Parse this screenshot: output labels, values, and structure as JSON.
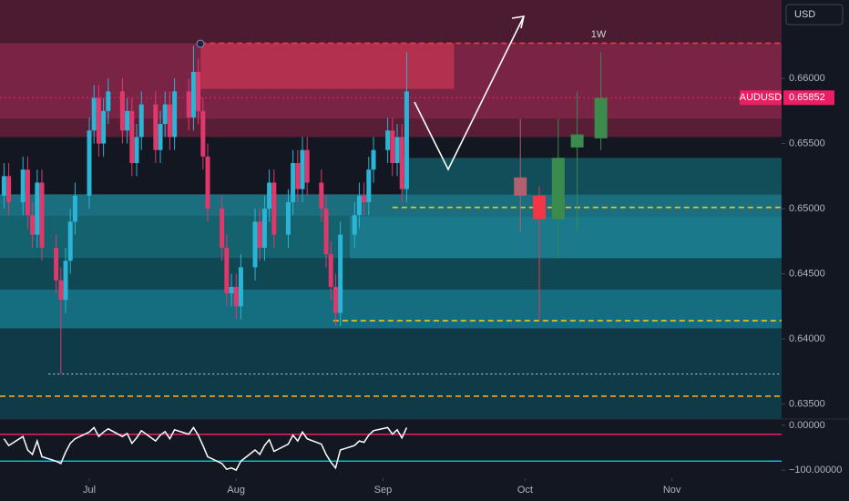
{
  "chart_data": [
    {
      "type": "candlestick",
      "symbol": "AUDUSD",
      "currency": "USD",
      "annotation": "1W",
      "price_line": {
        "value": 0.65852,
        "label": "0.65852"
      },
      "xlim": [
        -18.85,
        146.15
      ],
      "xticks": [
        {
          "value": 0,
          "label": "Jul"
        },
        {
          "value": 31,
          "label": "Aug"
        },
        {
          "value": 62,
          "label": "Sep"
        },
        {
          "value": 92,
          "label": "Oct"
        },
        {
          "value": 123,
          "label": "Nov"
        }
      ],
      "ylim": [
        0.63385,
        0.66602
      ],
      "yticks": [
        {
          "value": 0.635,
          "label": "0.63500"
        },
        {
          "value": 0.64,
          "label": "0.64000"
        },
        {
          "value": 0.645,
          "label": "0.64500"
        },
        {
          "value": 0.65,
          "label": "0.65000"
        },
        {
          "value": 0.655,
          "label": "0.65500"
        },
        {
          "value": 0.66,
          "label": "0.66000"
        }
      ],
      "up_color": "#2ab4d6",
      "down_color": "#e0386b",
      "candles": {
        "x": [
          -18,
          -17,
          -14,
          -13,
          -12,
          -11,
          -10,
          -7,
          -6,
          -5,
          -4,
          -3,
          0,
          1,
          2,
          3,
          4,
          7,
          8,
          9,
          10,
          11,
          14,
          15,
          16,
          17,
          18,
          21,
          22,
          23,
          24,
          25,
          28,
          29,
          30,
          31,
          32,
          35,
          36,
          37,
          38,
          39,
          42,
          43,
          44,
          45,
          46,
          49,
          50,
          51,
          52,
          53,
          56,
          57,
          58,
          59,
          60,
          63,
          64,
          65,
          66,
          67
        ],
        "open": [
          0.651,
          0.6525,
          0.6505,
          0.653,
          0.6495,
          0.648,
          0.652,
          0.647,
          0.6445,
          0.643,
          0.646,
          0.649,
          0.651,
          0.656,
          0.6585,
          0.655,
          0.6575,
          0.659,
          0.656,
          0.6575,
          0.6535,
          0.6555,
          0.658,
          0.6545,
          0.6565,
          0.658,
          0.6555,
          0.659,
          0.657,
          0.6605,
          0.6575,
          0.654,
          0.65,
          0.647,
          0.6435,
          0.644,
          0.6425,
          0.6455,
          0.649,
          0.647,
          0.65,
          0.652,
          0.648,
          0.6505,
          0.6535,
          0.6515,
          0.6545,
          0.652,
          0.65,
          0.6465,
          0.644,
          0.642,
          0.648,
          0.6495,
          0.651,
          0.6505,
          0.653,
          0.6545,
          0.656,
          0.6535,
          0.6555,
          0.6515
        ],
        "high": [
          0.6535,
          0.6535,
          0.654,
          0.654,
          0.6505,
          0.653,
          0.653,
          0.648,
          0.6455,
          0.647,
          0.65,
          0.652,
          0.657,
          0.6595,
          0.6595,
          0.6585,
          0.66,
          0.66,
          0.6585,
          0.6585,
          0.6565,
          0.659,
          0.659,
          0.6575,
          0.659,
          0.659,
          0.66,
          0.66,
          0.6625,
          0.6615,
          0.6585,
          0.655,
          0.651,
          0.648,
          0.645,
          0.645,
          0.6465,
          0.65,
          0.65,
          0.651,
          0.653,
          0.653,
          0.6515,
          0.6545,
          0.6545,
          0.6555,
          0.6555,
          0.653,
          0.651,
          0.6475,
          0.645,
          0.649,
          0.6505,
          0.652,
          0.652,
          0.654,
          0.6555,
          0.657,
          0.657,
          0.6565,
          0.6565,
          0.662
        ],
        "low": [
          0.65,
          0.6495,
          0.6495,
          0.6485,
          0.647,
          0.647,
          0.646,
          0.6435,
          0.6373,
          0.642,
          0.645,
          0.648,
          0.65,
          0.655,
          0.654,
          0.654,
          0.6565,
          0.655,
          0.655,
          0.6525,
          0.6525,
          0.6545,
          0.6535,
          0.6535,
          0.6555,
          0.6545,
          0.6545,
          0.656,
          0.656,
          0.6565,
          0.653,
          0.649,
          0.646,
          0.6425,
          0.6425,
          0.6415,
          0.6415,
          0.6445,
          0.646,
          0.646,
          0.649,
          0.647,
          0.647,
          0.6495,
          0.6505,
          0.6505,
          0.651,
          0.649,
          0.6455,
          0.643,
          0.641,
          0.641,
          0.647,
          0.6485,
          0.6495,
          0.6495,
          0.652,
          0.6535,
          0.6525,
          0.6525,
          0.6505,
          0.6505
        ],
        "close": [
          0.6525,
          0.6505,
          0.653,
          0.6495,
          0.648,
          0.652,
          0.647,
          0.6445,
          0.643,
          0.646,
          0.649,
          0.651,
          0.656,
          0.6585,
          0.655,
          0.6575,
          0.659,
          0.656,
          0.6575,
          0.6535,
          0.6555,
          0.658,
          0.6545,
          0.6565,
          0.658,
          0.6555,
          0.659,
          0.657,
          0.6605,
          0.6575,
          0.654,
          0.65,
          0.647,
          0.6435,
          0.644,
          0.6425,
          0.6455,
          0.649,
          0.647,
          0.65,
          0.652,
          0.648,
          0.6505,
          0.6535,
          0.6515,
          0.6545,
          0.652,
          0.65,
          0.6465,
          0.644,
          0.642,
          0.648,
          0.6495,
          0.651,
          0.6505,
          0.653,
          0.6545,
          0.656,
          0.6535,
          0.6555,
          0.6515,
          0.659
        ]
      },
      "weekly_candles": {
        "x": [
          91,
          95,
          99,
          103,
          108
        ],
        "open": [
          0.6524,
          0.651,
          0.6492,
          0.6547,
          0.6554
        ],
        "high": [
          0.6569,
          0.6517,
          0.6569,
          0.659,
          0.662
        ],
        "low": [
          0.6482,
          0.6414,
          0.6462,
          0.6482,
          0.6545
        ],
        "close": [
          0.651,
          0.6492,
          0.6539,
          0.6557,
          0.6585
        ],
        "colors": [
          "#b0606e",
          "#f23645",
          "#3b8a4e",
          "#3b8a4e",
          "#3b8a4e"
        ]
      },
      "zones": [
        {
          "from": 0.6627,
          "to": 0.66602,
          "x0": -18.85,
          "x1": 146.15,
          "color": "#4b1c31"
        },
        {
          "from": 0.6569,
          "to": 0.6627,
          "x0": -18.85,
          "x1": 146.15,
          "color": "#7a2445"
        },
        {
          "from": 0.6555,
          "to": 0.6569,
          "x0": -18.85,
          "x1": 146.15,
          "color": "#5a1d36"
        },
        {
          "from": 0.6592,
          "to": 0.6627,
          "x0": 23.5,
          "x1": 77,
          "color": "#b3304f"
        },
        {
          "from": 0.6494,
          "to": 0.6511,
          "x0": -18.85,
          "x1": 146.15,
          "color": "#1a6e7e"
        },
        {
          "from": 0.6462,
          "to": 0.6494,
          "x0": -18.85,
          "x1": 146.15,
          "color": "#15626f"
        },
        {
          "from": 0.6438,
          "to": 0.6462,
          "x0": -18.85,
          "x1": 146.15,
          "color": "#0f4753"
        },
        {
          "from": 0.6408,
          "to": 0.6438,
          "x0": -18.85,
          "x1": 146.15,
          "color": "#146e80"
        },
        {
          "from": 0.63385,
          "to": 0.6408,
          "x0": -18.85,
          "x1": 146.15,
          "color": "#0e3b47"
        },
        {
          "from": 0.6511,
          "to": 0.6539,
          "x0": 66,
          "x1": 146.15,
          "color": "#114e5a"
        },
        {
          "from": 0.6462,
          "to": 0.6494,
          "x0": 55,
          "x1": 146.15,
          "color": "#1a7a8b"
        }
      ],
      "levels": [
        {
          "value": 0.6627,
          "x0": 23.5,
          "color": "#f23645",
          "style": "dashed"
        },
        {
          "value": 0.65852,
          "x0": -18.85,
          "color": "#e91e63",
          "style": "dotted"
        },
        {
          "value": 0.6501,
          "x0": 64,
          "color": "#f5c518",
          "style": "dashed"
        },
        {
          "value": 0.6414,
          "x0": 51.5,
          "color": "#f5c518",
          "style": "dashed"
        },
        {
          "value": 0.6373,
          "x0": -8.6,
          "color": "#d1d4dc",
          "style": "dotted"
        },
        {
          "value": 0.6356,
          "x0": -18.85,
          "color": "#f5a623",
          "style": "dashed"
        }
      ]
    },
    {
      "type": "line",
      "ylim": [
        -118,
        14
      ],
      "yticks": [
        {
          "value": 0,
          "label": "0.00000"
        },
        {
          "value": -100,
          "label": "−100.00000"
        }
      ],
      "x": [
        -18,
        -17,
        -14,
        -13,
        -12,
        -11,
        -10,
        -7,
        -6,
        -5,
        -4,
        -3,
        0,
        1,
        2,
        3,
        4,
        7,
        8,
        9,
        10,
        11,
        14,
        15,
        16,
        17,
        18,
        21,
        22,
        23,
        24,
        25,
        28,
        29,
        30,
        31,
        32,
        35,
        36,
        37,
        38,
        39,
        42,
        43,
        44,
        45,
        46,
        49,
        50,
        51,
        52,
        53,
        56,
        57,
        58,
        59,
        60,
        63,
        64,
        65,
        66,
        67
      ],
      "values": [
        -30,
        -45,
        -25,
        -55,
        -65,
        -35,
        -70,
        -80,
        -85,
        -60,
        -40,
        -30,
        -15,
        -5,
        -25,
        -15,
        -8,
        -25,
        -18,
        -40,
        -28,
        -12,
        -35,
        -22,
        -14,
        -30,
        -10,
        -20,
        -5,
        -22,
        -45,
        -70,
        -85,
        -98,
        -95,
        -100,
        -80,
        -55,
        -65,
        -45,
        -32,
        -58,
        -42,
        -22,
        -35,
        -15,
        -30,
        -42,
        -65,
        -82,
        -95,
        -55,
        -45,
        -35,
        -38,
        -22,
        -12,
        -5,
        -20,
        -10,
        -28,
        -5
      ],
      "color": "#ffffff",
      "levels": [
        {
          "value": -20,
          "color": "#e91e63"
        },
        {
          "value": -80,
          "color": "#00bcd4"
        }
      ]
    }
  ]
}
